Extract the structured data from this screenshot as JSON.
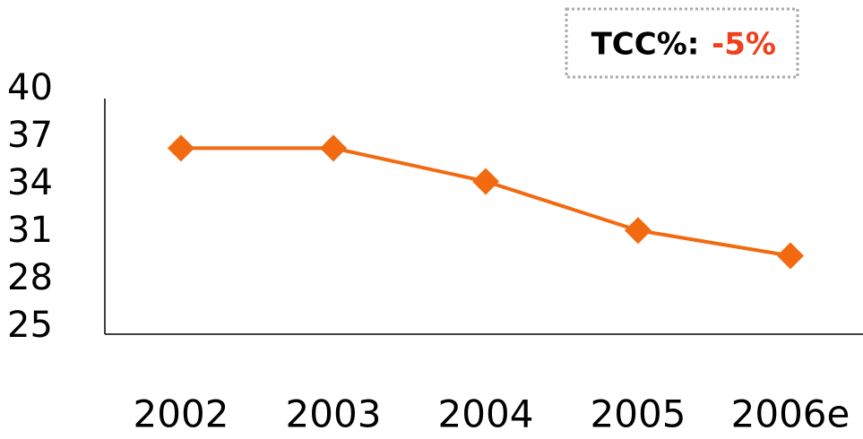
{
  "chart_data": {
    "type": "line",
    "categories": [
      "2002",
      "2003",
      "2004",
      "2005",
      "2006e"
    ],
    "series": [
      {
        "name": null,
        "color": "#f26a0f",
        "values": [
          36.3,
          36.3,
          34.2,
          31.1,
          29.5
        ]
      }
    ],
    "ylim": [
      25,
      40
    ],
    "yticks": [
      25,
      28,
      31,
      34,
      37,
      40
    ],
    "annotation": {
      "label": "TCC%:",
      "value": "-5%",
      "value_color": "#f0401a"
    }
  }
}
